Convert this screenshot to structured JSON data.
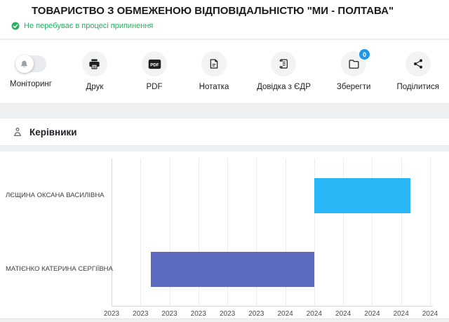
{
  "header": {
    "title": "ТОВАРИСТВО З ОБМЕЖЕНОЮ ВІДПОВІДАЛЬНІСТЮ \"МИ - ПОЛТАВА\"",
    "status": "Не перебуває в процесі припинення",
    "status_color": "#27ae60"
  },
  "toolbar": {
    "items": [
      {
        "label": "Моніторинг",
        "icon": "monitoring-bell-toggle"
      },
      {
        "label": "Друк",
        "icon": "printer-icon"
      },
      {
        "label": "PDF",
        "icon": "pdf-icon",
        "icon_text": "PDF"
      },
      {
        "label": "Нотатка",
        "icon": "note-icon"
      },
      {
        "label": "Довідка з ЄДР",
        "icon": "edr-certificate-icon"
      },
      {
        "label": "Зберегти",
        "icon": "folder-icon",
        "badge": "0"
      },
      {
        "label": "Поділитися",
        "icon": "share-icon"
      }
    ]
  },
  "section": {
    "title": "Керівники"
  },
  "chart_data": {
    "type": "bar",
    "subtype": "gantt-timeline",
    "orientation": "horizontal",
    "title": "",
    "grid": true,
    "x_tick_labels": [
      "2023",
      "2023",
      "2023",
      "2023",
      "2023",
      "2023",
      "2024",
      "2024",
      "2024",
      "2024",
      "2024",
      "2024"
    ],
    "rows": [
      {
        "label": "ЛЄЩИНА ОКСАНА ВАСИЛІВНА",
        "start_tick": 7.0,
        "end_tick": 10.32,
        "color": "#29b6f6"
      },
      {
        "label": "МАТІЄНКО КАТЕРИНА СЕРГІЇВНА",
        "start_tick": 1.36,
        "end_tick": 7.0,
        "color": "#5c6bc0"
      }
    ]
  }
}
